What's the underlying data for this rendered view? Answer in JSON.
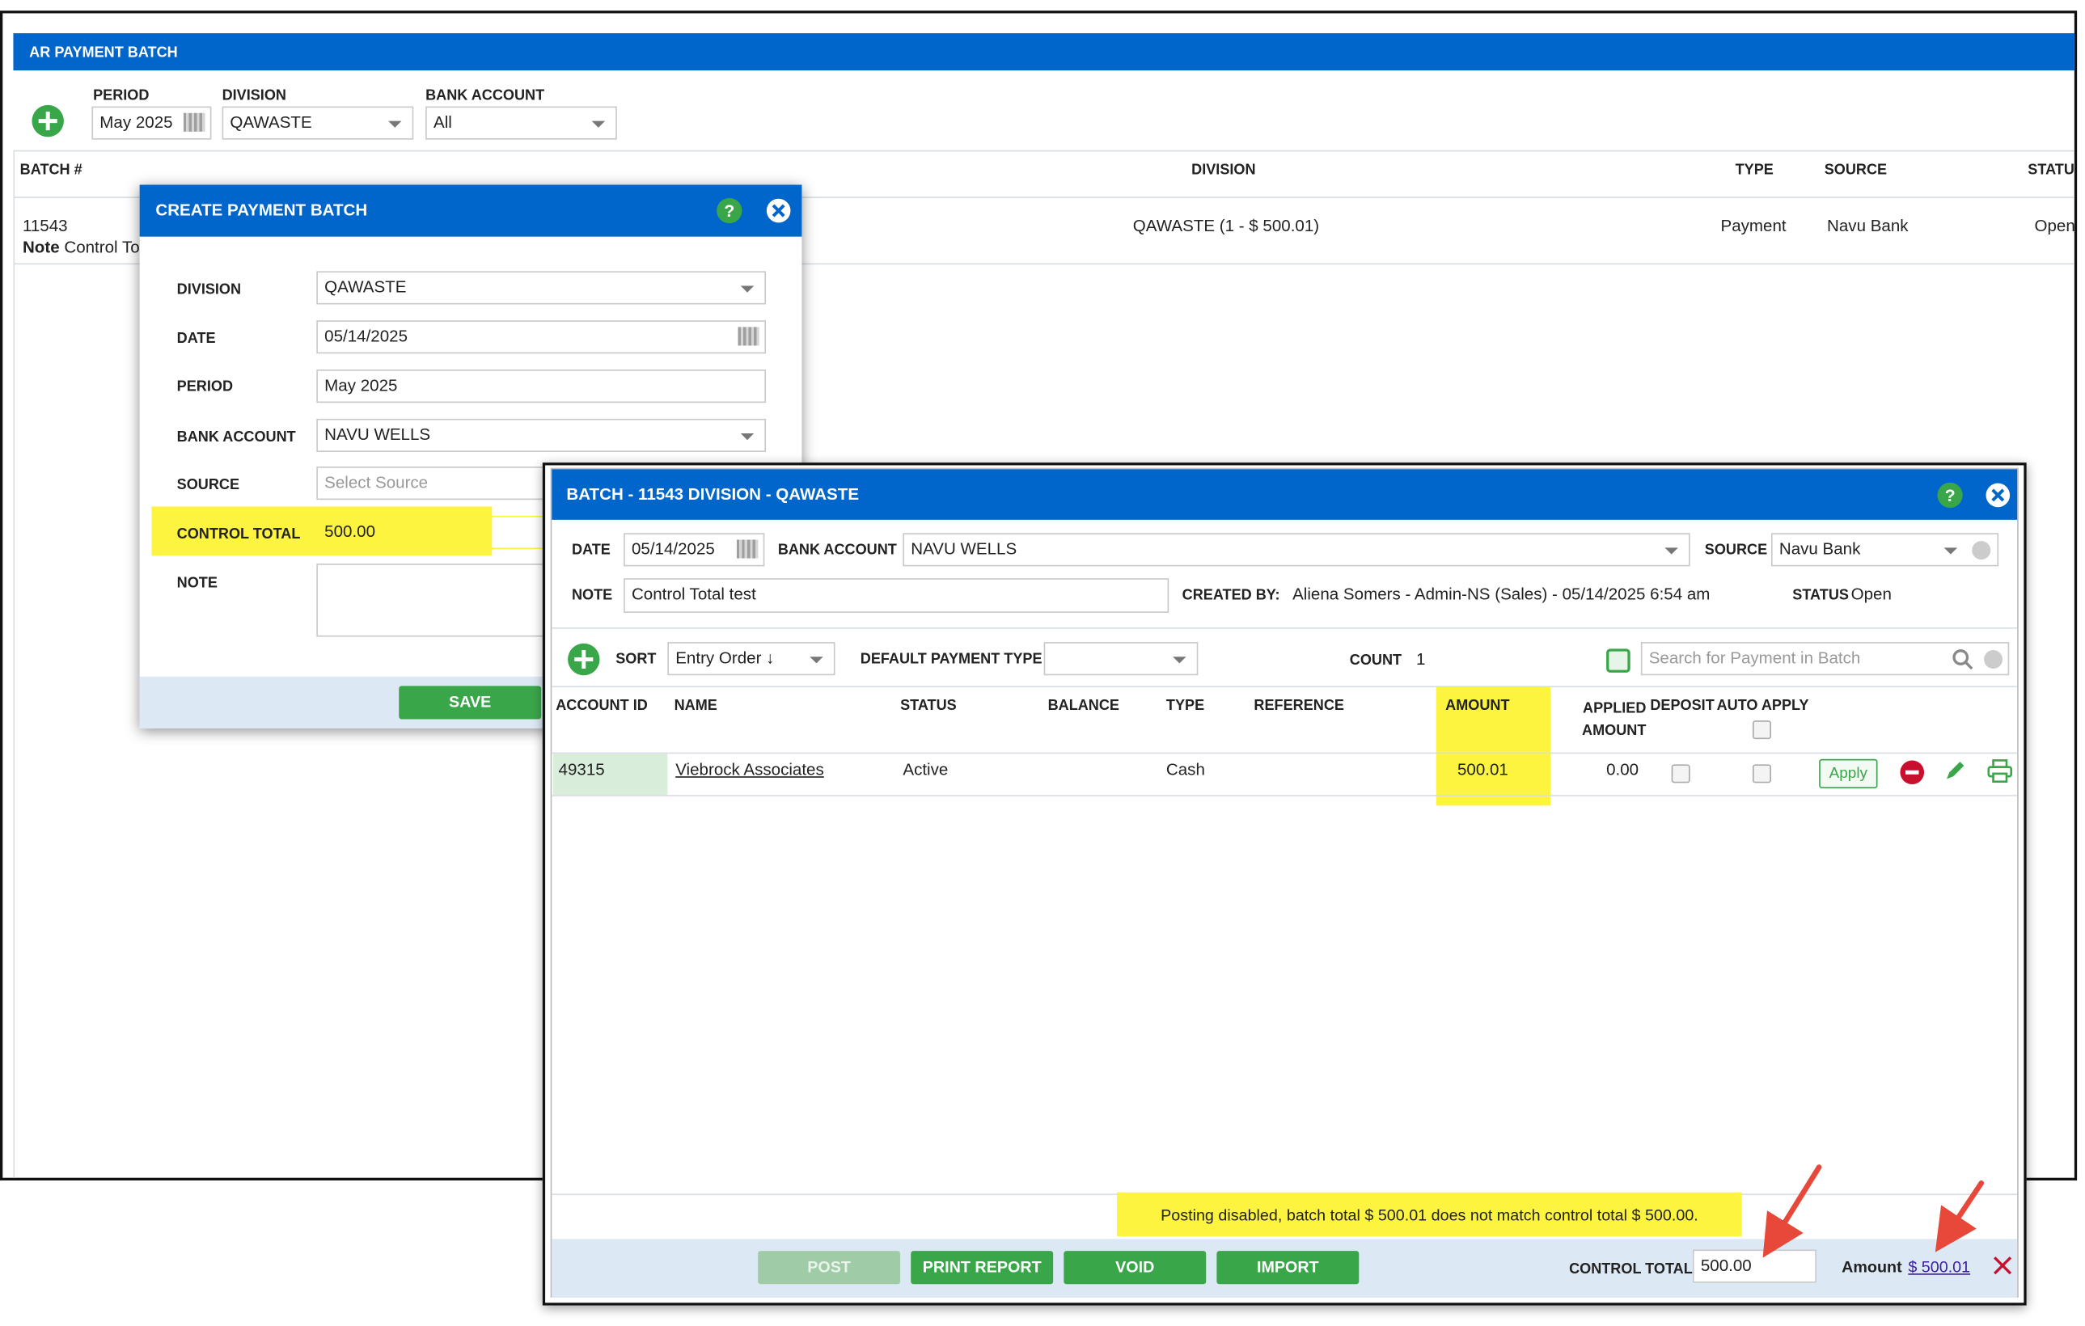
{
  "main": {
    "title": "AR PAYMENT BATCH",
    "period_label": "PERIOD",
    "period": "May 2025",
    "division_label": "DIVISION",
    "division": "QAWASTE",
    "bank_account_label": "BANK ACCOUNT",
    "bank_account": "All",
    "table": {
      "columns": [
        "BATCH #",
        "DIVISION",
        "TYPE",
        "SOURCE",
        "STATUS"
      ],
      "rows": [
        {
          "batch": "11543",
          "note_label": "Note",
          "note": "Control Total test",
          "division": "QAWASTE (1 - $ 500.01)",
          "type": "Payment",
          "source": "Navu Bank",
          "status": "Open"
        }
      ]
    }
  },
  "create_dialog": {
    "title": "CREATE PAYMENT BATCH",
    "help": "?",
    "fields": [
      {
        "label": "DIVISION",
        "value": "QAWASTE"
      },
      {
        "label": "DATE",
        "value": "05/14/2025"
      },
      {
        "label": "PERIOD",
        "value": "May 2025"
      },
      {
        "label": "BANK ACCOUNT",
        "value": "NAVU WELLS"
      },
      {
        "label": "SOURCE",
        "placeholder": "Select Source"
      },
      {
        "label": "CONTROL TOTAL",
        "value": "500.00"
      },
      {
        "label": "NOTE"
      }
    ],
    "save": "SAVE"
  },
  "batch_dialog": {
    "title": "BATCH - 11543 DIVISION - QAWASTE",
    "help": "?",
    "date_label": "DATE",
    "date": "05/14/2025",
    "bank_account_label": "BANK ACCOUNT",
    "bank_account": "NAVU WELLS",
    "source_label": "SOURCE",
    "source": "Navu Bank",
    "note_label": "NOTE",
    "note": "Control Total test",
    "created_by_label": "CREATED BY:",
    "created_by": "Aliena Somers - Admin-NS (Sales) - 05/14/2025 6:54 am",
    "status_label": "STATUS",
    "status": "Open",
    "sort_label": "SORT",
    "sort": "Entry Order ↓",
    "default_payment_type_label": "DEFAULT PAYMENT TYPE",
    "count_label": "COUNT",
    "count": "1",
    "search_placeholder": "Search for Payment in Batch",
    "table": {
      "columns": [
        "ACCOUNT ID",
        "NAME",
        "STATUS",
        "BALANCE",
        "TYPE",
        "REFERENCE",
        "AMOUNT",
        "APPLIED AMOUNT",
        "DEPOSIT",
        "AUTO APPLY"
      ],
      "rows": [
        {
          "account_id": "49315",
          "name": "Viebrock Associates",
          "status": "Active",
          "type": "Cash",
          "amount": "500.01",
          "applied_amount": "0.00",
          "apply": "Apply"
        }
      ]
    },
    "message": "Posting disabled, batch total $ 500.01 does not match control total $ 500.00.",
    "buttons": [
      "POST",
      "PRINT REPORT",
      "VOID",
      "IMPORT"
    ],
    "control_total_label": "CONTROL TOTAL",
    "control_total": "500.00",
    "amount_label": "Amount",
    "amount": "$ 500.01"
  }
}
